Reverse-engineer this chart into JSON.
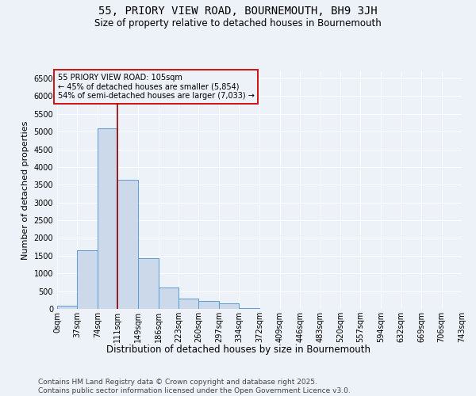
{
  "title1": "55, PRIORY VIEW ROAD, BOURNEMOUTH, BH9 3JH",
  "title2": "Size of property relative to detached houses in Bournemouth",
  "xlabel": "Distribution of detached houses by size in Bournemouth",
  "ylabel": "Number of detached properties",
  "bin_edges": [
    0,
    37,
    74,
    111,
    149,
    186,
    223,
    260,
    297,
    334,
    372,
    409,
    446,
    483,
    520,
    557,
    594,
    632,
    669,
    706,
    743
  ],
  "bar_heights": [
    100,
    1650,
    5100,
    3650,
    1430,
    600,
    280,
    220,
    160,
    30,
    5,
    3,
    2,
    1,
    1,
    0,
    0,
    0,
    0,
    0
  ],
  "bar_facecolor": "#ccd9ea",
  "bar_edgecolor": "#5b9bd5",
  "bar_linewidth": 0.7,
  "vline_x": 111,
  "vline_color": "#990000",
  "vline_linewidth": 1.2,
  "annotation_text": "55 PRIORY VIEW ROAD: 105sqm\n← 45% of detached houses are smaller (5,854)\n54% of semi-detached houses are larger (7,033) →",
  "annotation_box_color": "#cc0000",
  "annotation_text_color": "#000000",
  "ylim": [
    0,
    6700
  ],
  "yticks": [
    0,
    500,
    1000,
    1500,
    2000,
    2500,
    3000,
    3500,
    4000,
    4500,
    5000,
    5500,
    6000,
    6500
  ],
  "bg_color": "#edf1f8",
  "grid_color": "#ffffff",
  "footer_line1": "Contains HM Land Registry data © Crown copyright and database right 2025.",
  "footer_line2": "Contains public sector information licensed under the Open Government Licence v3.0.",
  "title1_fontsize": 10,
  "title2_fontsize": 8.5,
  "xlabel_fontsize": 8.5,
  "ylabel_fontsize": 8,
  "tick_fontsize": 7,
  "annot_fontsize": 7,
  "footer_fontsize": 6.5
}
